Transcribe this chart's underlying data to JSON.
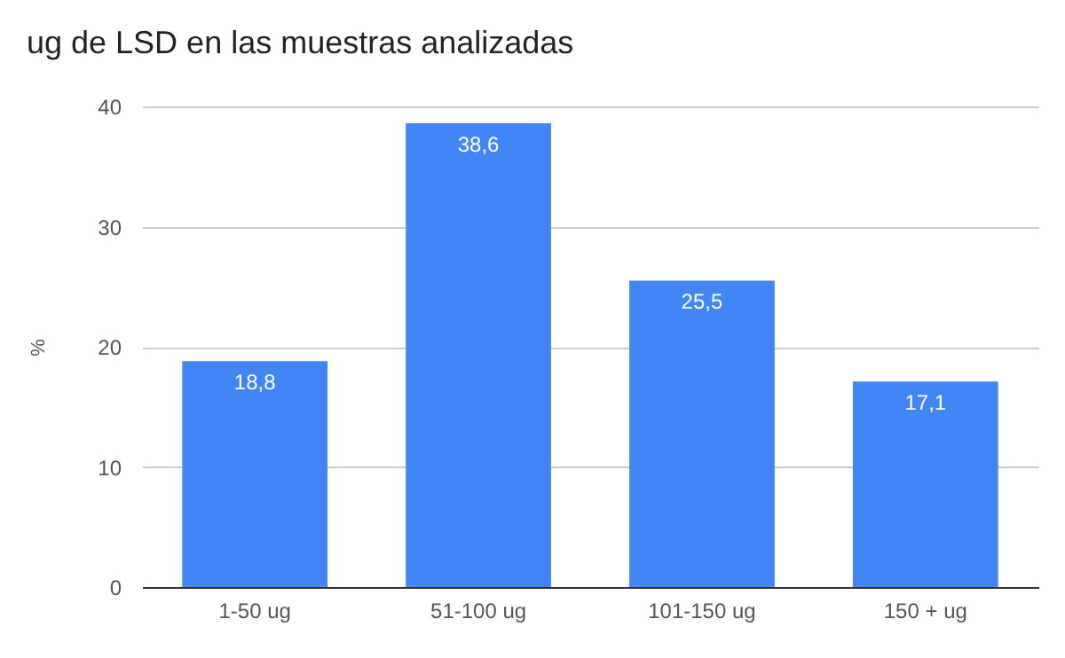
{
  "chart_data": {
    "type": "bar",
    "title": "ug de LSD en las muestras analizadas",
    "ylabel": "%",
    "categories": [
      "1-50 ug",
      "51-100 ug",
      "101-150 ug",
      "150 + ug"
    ],
    "values": [
      18.8,
      38.6,
      25.5,
      17.1
    ],
    "value_labels": [
      "18,8",
      "38,6",
      "25,5",
      "17,1"
    ],
    "color": "#4285f4",
    "ylim": [
      0,
      40
    ],
    "yticks": [
      0,
      10,
      20,
      30,
      40
    ],
    "grid": "y"
  }
}
